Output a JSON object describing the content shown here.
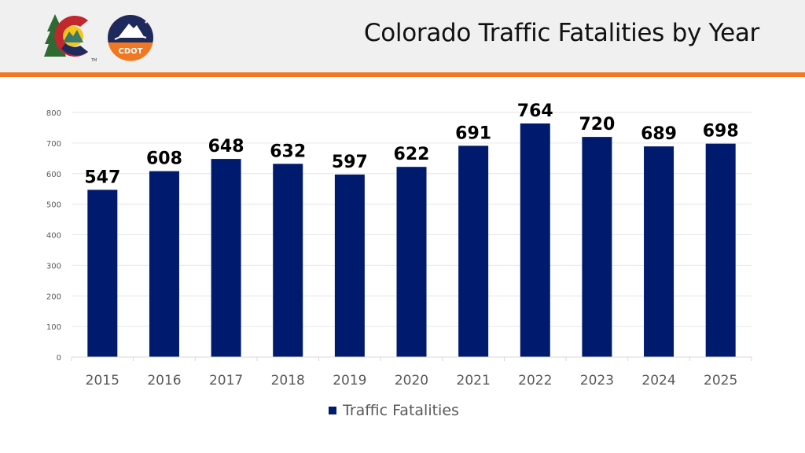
{
  "header": {
    "title": "Colorado Traffic Fatalities by Year",
    "logos": {
      "colorado": {
        "name": "colorado-logo",
        "mark": "TM"
      },
      "cdot": {
        "name": "cdot-logo",
        "text": "CDOT"
      }
    }
  },
  "colors": {
    "header_bg": "#f0f0f0",
    "accent": "#f07823",
    "bar": "#001a6e",
    "grid": "#e6e6e6",
    "axis_text": "#595959"
  },
  "chart_data": {
    "type": "bar",
    "title": "Colorado Traffic Fatalities by Year",
    "xlabel": "",
    "ylabel": "",
    "categories": [
      "2015",
      "2016",
      "2017",
      "2018",
      "2019",
      "2020",
      "2021",
      "2022",
      "2023",
      "2024",
      "2025"
    ],
    "series": [
      {
        "name": "Traffic Fatalities",
        "values": [
          547,
          608,
          648,
          632,
          597,
          622,
          691,
          764,
          720,
          689,
          698
        ]
      }
    ],
    "data_labels": [
      "547",
      "608",
      "648",
      "632",
      "597",
      "622",
      "691",
      "764",
      "720",
      "689",
      "698"
    ],
    "ylim": [
      0,
      800
    ],
    "yticks": [
      "0",
      "100",
      "200",
      "300",
      "400",
      "500",
      "600",
      "700",
      "800"
    ],
    "ytick_values": [
      0,
      100,
      200,
      300,
      400,
      500,
      600,
      700,
      800
    ],
    "grid": true,
    "legend_position": "bottom"
  }
}
